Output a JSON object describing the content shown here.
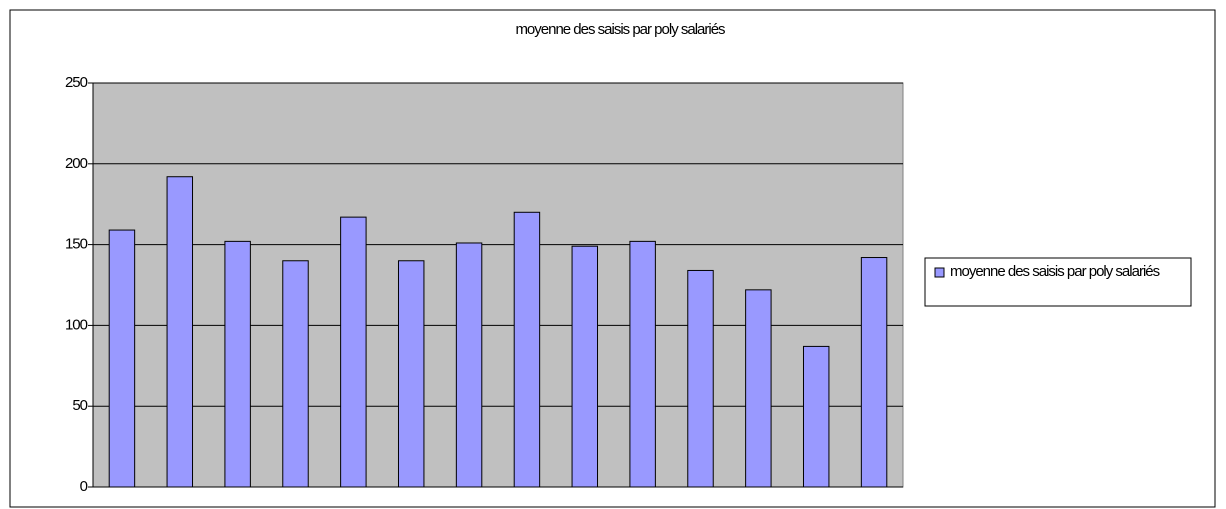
{
  "chart_data": {
    "type": "bar",
    "title": "moyenne des saisis par poly salariés",
    "categories": [
      null,
      null,
      null,
      null,
      null,
      null,
      null,
      null,
      null,
      null,
      null,
      null,
      null,
      null
    ],
    "series": [
      {
        "name": "moyenne des saisis par poly salariés",
        "color": "#9999ff",
        "values": [
          159,
          192,
          152,
          140,
          167,
          140,
          151,
          170,
          149,
          152,
          134,
          122,
          87,
          142
        ]
      }
    ],
    "ylim": [
      0,
      250
    ],
    "yticks": [
      0,
      50,
      100,
      150,
      200,
      250
    ],
    "grid": true,
    "legend": "right"
  }
}
